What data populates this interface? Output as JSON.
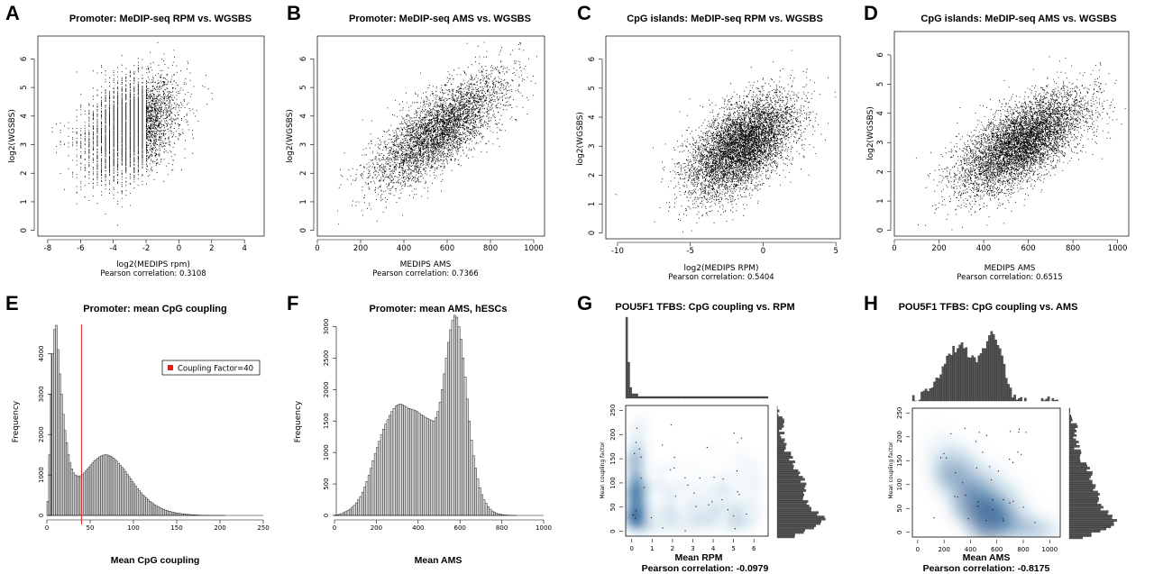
{
  "chart_data": [
    {
      "id": "A",
      "type": "scatter",
      "panel_letter": "A",
      "title": "Promoter: MeDIP-seq RPM vs. WGSBS",
      "xlabel": "log2(MEDIPS rpm)",
      "ylabel": "log2(WGSBS)",
      "correlation_text": "Pearson correlation: 0.3108",
      "xlim": [
        -8.6,
        5.2
      ],
      "ylim": [
        -0.2,
        6.8
      ],
      "xticks": [
        -8,
        -6,
        -4,
        -2,
        0,
        2,
        4
      ],
      "yticks": [
        0,
        1,
        2,
        3,
        4,
        5,
        6
      ],
      "cloud": {
        "n_points": 30000,
        "center": [
          -3.0,
          3.6
        ],
        "sd": [
          1.4,
          0.85
        ],
        "correlation": 0.31,
        "x_floor": -8,
        "discrete_stripes_below": -2
      }
    },
    {
      "id": "B",
      "type": "scatter",
      "panel_letter": "B",
      "title": "Promoter: MeDIP-seq AMS vs. WGSBS",
      "xlabel": "MEDIPS AMS",
      "ylabel": "log2(WGSBS)",
      "correlation_text": "Pearson correlation: 0.7366",
      "xlim": [
        0,
        1050
      ],
      "ylim": [
        -0.2,
        6.8
      ],
      "xticks": [
        0,
        200,
        400,
        600,
        800,
        1000
      ],
      "yticks": [
        0,
        1,
        2,
        3,
        4,
        5,
        6
      ],
      "cloud": {
        "n_points": 30000,
        "center": [
          560,
          3.5
        ],
        "sd": [
          150,
          0.95
        ],
        "correlation": 0.74
      }
    },
    {
      "id": "C",
      "type": "scatter",
      "panel_letter": "C",
      "title": "CpG islands: MeDIP-seq RPM vs. WGSBS",
      "xlabel": "log2(MEDIPS RPM)",
      "ylabel": "log2(WGSBS)",
      "correlation_text": "Pearson correlation: 0.5404",
      "xlim": [
        -10.8,
        5.3
      ],
      "ylim": [
        -0.2,
        6.8
      ],
      "xticks": [
        -10,
        -5,
        0,
        5
      ],
      "yticks": [
        0,
        1,
        2,
        3,
        4,
        5,
        6
      ],
      "cloud": {
        "n_points": 20000,
        "center": [
          -1.5,
          3.0
        ],
        "sd": [
          1.8,
          0.85
        ],
        "correlation": 0.54
      }
    },
    {
      "id": "D",
      "type": "scatter",
      "panel_letter": "D",
      "title": "CpG islands: MeDIP-seq AMS vs. WGSBS",
      "xlabel": "MEDIPS AMS",
      "ylabel": "log2(WGSBS)",
      "correlation_text": "Pearson correlation: 0.6515",
      "xlim": [
        0,
        1050
      ],
      "ylim": [
        -0.2,
        6.8
      ],
      "xticks": [
        0,
        200,
        400,
        600,
        800,
        1000
      ],
      "yticks": [
        0,
        1,
        2,
        3,
        4,
        5,
        6
      ],
      "cloud": {
        "n_points": 20000,
        "center": [
          570,
          3.0
        ],
        "sd": [
          140,
          0.85
        ],
        "correlation": 0.65
      }
    },
    {
      "id": "E",
      "type": "bar",
      "panel_letter": "E",
      "title": "Promoter: mean CpG coupling",
      "xlabel": "Mean CpG coupling",
      "ylabel": "Frequency",
      "xlim": [
        0,
        250
      ],
      "ylim": [
        0,
        4900
      ],
      "xticks": [
        0,
        50,
        100,
        150,
        200,
        250
      ],
      "yticks": [
        0,
        1000,
        2000,
        3000,
        4000
      ],
      "bin_width": 2,
      "bins_start": 0,
      "values": [
        350,
        1500,
        3000,
        4000,
        4600,
        4700,
        4100,
        3500,
        3000,
        2500,
        2100,
        1800,
        1500,
        1300,
        1150,
        1050,
        1000,
        980,
        960,
        980,
        1010,
        1050,
        1100,
        1150,
        1200,
        1250,
        1300,
        1350,
        1380,
        1420,
        1450,
        1470,
        1490,
        1500,
        1500,
        1490,
        1470,
        1450,
        1420,
        1380,
        1340,
        1290,
        1240,
        1190,
        1140,
        1080,
        1020,
        960,
        900,
        840,
        780,
        720,
        660,
        610,
        560,
        510,
        470,
        430,
        390,
        350,
        320,
        290,
        260,
        230,
        210,
        190,
        170,
        150,
        135,
        120,
        105,
        95,
        85,
        75,
        65,
        58,
        52,
        46,
        40,
        35,
        30,
        26,
        22,
        19,
        16,
        13,
        11,
        9,
        7,
        6,
        5,
        4,
        3,
        3,
        2,
        2,
        1,
        1,
        1,
        1,
        1,
        1,
        1,
        0,
        0,
        0,
        0,
        0,
        0,
        0,
        0,
        0,
        0,
        0,
        0,
        0,
        0,
        0,
        0,
        0,
        0,
        0,
        0
      ],
      "reference_line": {
        "x": 40,
        "color": "#e02020"
      },
      "legend": {
        "label": "Coupling Factor=40",
        "color": "#e02020",
        "placement": "top-right"
      }
    },
    {
      "id": "F",
      "type": "bar",
      "panel_letter": "F",
      "title": "Promoter: mean AMS, hESCs",
      "xlabel": "Mean AMS",
      "ylabel": "Frequency",
      "xlim": [
        0,
        1000
      ],
      "ylim": [
        0,
        3150
      ],
      "xticks": [
        0,
        200,
        400,
        600,
        800,
        1000
      ],
      "yticks": [
        0,
        500,
        1000,
        1500,
        2000,
        2500,
        3000
      ],
      "bin_width": 10,
      "bins_start": 0,
      "values": [
        5,
        10,
        20,
        30,
        45,
        60,
        80,
        100,
        130,
        160,
        200,
        250,
        300,
        370,
        450,
        540,
        640,
        750,
        870,
        980,
        1080,
        1180,
        1280,
        1370,
        1450,
        1520,
        1590,
        1650,
        1700,
        1740,
        1760,
        1770,
        1760,
        1740,
        1720,
        1700,
        1690,
        1680,
        1670,
        1650,
        1630,
        1600,
        1580,
        1560,
        1540,
        1520,
        1510,
        1500,
        1550,
        1650,
        1800,
        2000,
        2250,
        2500,
        2750,
        2950,
        3100,
        3180,
        3150,
        3000,
        2800,
        2500,
        2200,
        1850,
        1500,
        1200,
        950,
        750,
        580,
        440,
        330,
        250,
        190,
        140,
        100,
        70,
        50,
        35,
        25,
        18,
        12,
        8,
        5,
        3,
        2,
        1,
        1,
        0,
        0,
        0,
        0,
        0,
        0,
        0,
        0,
        0,
        0,
        0,
        0,
        0
      ]
    },
    {
      "id": "G",
      "type": "scatter",
      "panel_letter": "G",
      "title": "POU5F1 TFBS: CpG coupling vs. RPM",
      "xlabel": "Mean RPM",
      "ylabel": "Mean coupling factor",
      "correlation_text": "Pearson correlation: -0.0979",
      "xlim": [
        -0.3,
        6.7
      ],
      "ylim": [
        -10,
        260
      ],
      "xticks": [
        0,
        1,
        2,
        3,
        4,
        5,
        6
      ],
      "yticks": [
        0,
        50,
        100,
        150,
        200,
        250
      ],
      "density": "smoothed",
      "cloud": {
        "center": [
          0.2,
          60
        ],
        "sd": [
          0.4,
          55
        ]
      },
      "marginal_top": "sharp spike near 0",
      "marginal_right": "skewed toward low coupling"
    },
    {
      "id": "H",
      "type": "scatter",
      "panel_letter": "H",
      "title": "POU5F1 TFBS: CpG coupling vs. AMS",
      "xlabel": "Mean AMS",
      "ylabel": "Mean coupling factor",
      "correlation_text": "Pearson correlation: -0.8175",
      "xlim": [
        -40,
        1080
      ],
      "ylim": [
        -10,
        260
      ],
      "xticks": [
        0,
        200,
        400,
        600,
        800,
        1000
      ],
      "yticks": [
        0,
        50,
        100,
        150,
        200,
        250
      ],
      "density": "smoothed",
      "cloud": {
        "center": [
          550,
          40
        ],
        "sd": [
          200,
          50
        ],
        "correlation": -0.82
      },
      "marginal_top": "bimodal",
      "marginal_right": "skewed toward low coupling"
    }
  ]
}
